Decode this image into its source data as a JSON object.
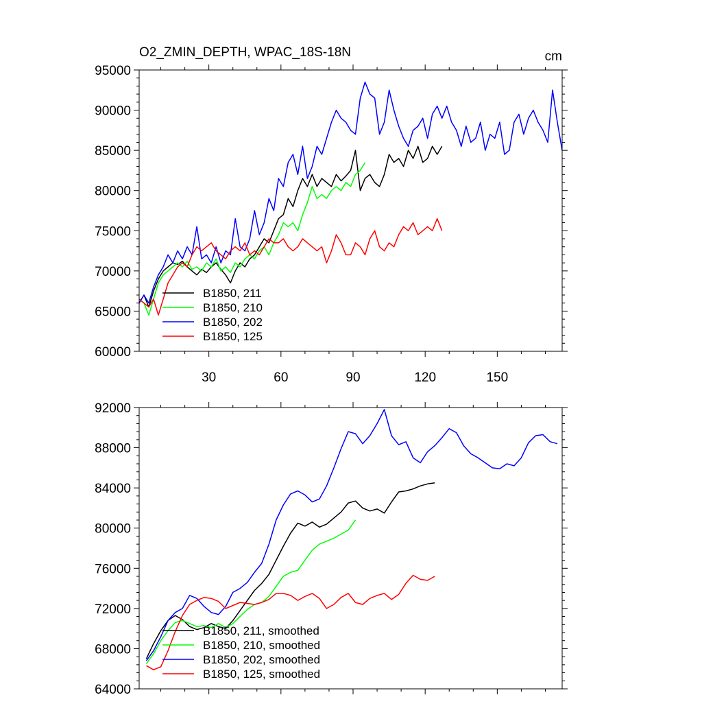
{
  "chart_data": [
    {
      "type": "line",
      "title": "O2_ZMIN_DEPTH, WPAC_18S-18N",
      "units": "cm",
      "xlabel": "",
      "ylabel": "",
      "xlim": [
        1,
        177
      ],
      "ylim": [
        60000,
        95000
      ],
      "xticks": [
        30,
        60,
        90,
        120,
        150
      ],
      "yticks": [
        60000,
        65000,
        70000,
        75000,
        80000,
        85000,
        90000,
        95000
      ],
      "ytick_labels": [
        "60000",
        "65000",
        "70000",
        "75000",
        "80000",
        "85000",
        "90000",
        "95000"
      ],
      "legend": "bottom-left",
      "grid": false,
      "series": [
        {
          "name": "B1850, 211",
          "color": "#000000",
          "x": [
            1,
            3,
            5,
            7,
            9,
            11,
            13,
            15,
            17,
            19,
            21,
            23,
            25,
            27,
            29,
            31,
            33,
            35,
            37,
            39,
            41,
            43,
            45,
            47,
            49,
            51,
            53,
            55,
            57,
            59,
            61,
            63,
            65,
            67,
            69,
            71,
            73,
            75,
            77,
            79,
            81,
            83,
            85,
            87,
            89,
            91,
            93,
            95,
            97,
            99,
            101,
            103,
            105,
            107,
            109,
            111,
            113,
            115,
            117,
            119,
            121,
            123,
            125,
            127
          ],
          "y": [
            66000,
            67000,
            65500,
            67500,
            69000,
            70000,
            70500,
            71000,
            70800,
            71200,
            70500,
            70000,
            69500,
            70200,
            69800,
            70500,
            71000,
            70200,
            69500,
            68500,
            70000,
            71000,
            70500,
            71500,
            72000,
            73000,
            74000,
            73500,
            75000,
            76500,
            77000,
            79000,
            78000,
            80000,
            81500,
            80500,
            82000,
            80500,
            81500,
            81000,
            80500,
            82000,
            81200,
            81800,
            82500,
            85000,
            80000,
            81500,
            82000,
            81000,
            80500,
            82000,
            84500,
            83500,
            84000,
            83000,
            85000,
            84000,
            85500,
            83500,
            84000,
            85500,
            84500,
            85500
          ]
        },
        {
          "name": "B1850, 210",
          "color": "#00ff00",
          "x": [
            1,
            3,
            5,
            7,
            9,
            11,
            13,
            15,
            17,
            19,
            21,
            23,
            25,
            27,
            29,
            31,
            33,
            35,
            37,
            39,
            41,
            43,
            45,
            47,
            49,
            51,
            53,
            55,
            57,
            59,
            61,
            63,
            65,
            67,
            69,
            71,
            73,
            75,
            77,
            79,
            81,
            83,
            85,
            87,
            89,
            91,
            93,
            95
          ],
          "y": [
            66500,
            66000,
            64500,
            66500,
            68500,
            69500,
            70000,
            70500,
            71000,
            70500,
            71200,
            70200,
            70500,
            70000,
            71000,
            70500,
            71500,
            70000,
            70500,
            69800,
            71000,
            70500,
            71500,
            72000,
            71500,
            72500,
            73000,
            72000,
            73500,
            74500,
            76000,
            75500,
            76000,
            75000,
            77000,
            78500,
            80500,
            79000,
            79500,
            79000,
            80000,
            80500,
            80000,
            81000,
            80500,
            82000,
            82500,
            83500
          ]
        },
        {
          "name": "B1850, 202",
          "color": "#0000ff",
          "x": [
            1,
            3,
            5,
            7,
            9,
            11,
            13,
            15,
            17,
            19,
            21,
            23,
            25,
            27,
            29,
            31,
            33,
            35,
            37,
            39,
            41,
            43,
            45,
            47,
            49,
            51,
            53,
            55,
            57,
            59,
            61,
            63,
            65,
            67,
            69,
            71,
            73,
            75,
            77,
            79,
            81,
            83,
            85,
            87,
            89,
            91,
            93,
            95,
            97,
            99,
            101,
            103,
            105,
            107,
            109,
            111,
            113,
            115,
            117,
            119,
            121,
            123,
            125,
            127,
            129,
            131,
            133,
            135,
            137,
            139,
            141,
            143,
            145,
            147,
            149,
            151,
            153,
            155,
            157,
            159,
            161,
            163,
            165,
            167,
            169,
            171,
            173,
            175,
            177
          ],
          "y": [
            66000,
            67000,
            66000,
            68000,
            69500,
            70500,
            72000,
            71000,
            72500,
            71500,
            73000,
            72000,
            75500,
            71500,
            72000,
            71000,
            73000,
            71000,
            72500,
            72000,
            76500,
            73000,
            72500,
            74000,
            77500,
            74500,
            76000,
            79000,
            77500,
            81500,
            80500,
            83500,
            84500,
            82000,
            85500,
            81500,
            83000,
            85500,
            84500,
            86500,
            88500,
            90000,
            89000,
            88500,
            87500,
            87000,
            91500,
            93500,
            92000,
            91500,
            87000,
            88500,
            92500,
            90000,
            88000,
            86500,
            85500,
            87500,
            88000,
            89000,
            86500,
            89500,
            90500,
            89000,
            90500,
            88500,
            87500,
            85500,
            88000,
            86000,
            86500,
            88500,
            85000,
            87000,
            86500,
            88500,
            84500,
            85000,
            88500,
            89500,
            87000,
            89000,
            90000,
            88500,
            87500,
            86000,
            92500,
            88500,
            85000
          ]
        },
        {
          "name": "B1850, 125",
          "color": "#ff0000",
          "x": [
            1,
            3,
            5,
            7,
            9,
            11,
            13,
            15,
            17,
            19,
            21,
            23,
            25,
            27,
            29,
            31,
            33,
            35,
            37,
            39,
            41,
            43,
            45,
            47,
            49,
            51,
            53,
            55,
            57,
            59,
            61,
            63,
            65,
            67,
            69,
            71,
            73,
            75,
            77,
            79,
            81,
            83,
            85,
            87,
            89,
            91,
            93,
            95,
            97,
            99,
            101,
            103,
            105,
            107,
            109,
            111,
            113,
            115,
            117,
            119,
            121,
            123,
            125,
            127
          ],
          "y": [
            66500,
            66000,
            65500,
            66500,
            64500,
            66500,
            68500,
            69500,
            70500,
            71000,
            70500,
            72000,
            73000,
            72500,
            73000,
            73500,
            72500,
            72000,
            71500,
            72500,
            73000,
            72500,
            73500,
            72000,
            72500,
            72000,
            73000,
            74000,
            73500,
            73500,
            74000,
            73000,
            72500,
            73000,
            74000,
            73500,
            73000,
            72500,
            73000,
            71000,
            72500,
            74500,
            73500,
            72000,
            72000,
            73500,
            73000,
            72000,
            74000,
            75000,
            73000,
            72500,
            73500,
            73000,
            74500,
            75500,
            75000,
            76000,
            74500,
            75000,
            75500,
            75000,
            76500,
            75000
          ]
        }
      ],
      "legend_labels": [
        "B1850, 211",
        "B1850, 210",
        "B1850, 202",
        "B1850, 125"
      ]
    },
    {
      "type": "line",
      "title": "",
      "xlabel": "",
      "ylabel": "",
      "xlim": [
        1,
        177
      ],
      "ylim": [
        64000,
        92000
      ],
      "xticks": [
        30,
        60,
        90,
        120,
        150
      ],
      "yticks": [
        64000,
        68000,
        72000,
        76000,
        80000,
        84000,
        88000,
        92000
      ],
      "ytick_labels": [
        "64000",
        "68000",
        "72000",
        "76000",
        "80000",
        "84000",
        "88000",
        "92000"
      ],
      "legend": "bottom-left",
      "grid": false,
      "series": [
        {
          "name": "B1850, 211, smoothed",
          "color": "#000000",
          "x": [
            4,
            7,
            10,
            13,
            16,
            19,
            22,
            25,
            28,
            31,
            34,
            37,
            40,
            43,
            46,
            49,
            52,
            55,
            58,
            61,
            64,
            67,
            70,
            73,
            76,
            79,
            82,
            85,
            88,
            91,
            94,
            97,
            100,
            103,
            106,
            109,
            112,
            115,
            118,
            121,
            124
          ],
          "y": [
            67000,
            68500,
            69800,
            70800,
            71300,
            70900,
            70200,
            69900,
            70100,
            70500,
            70200,
            70000,
            70800,
            71800,
            72800,
            73800,
            74500,
            75400,
            76800,
            78200,
            79500,
            80500,
            80200,
            80600,
            80100,
            80400,
            81000,
            81600,
            82500,
            82700,
            82000,
            81700,
            81900,
            81500,
            82600,
            83600,
            83700,
            83900,
            84200,
            84400,
            84500
          ]
        },
        {
          "name": "B1850, 210, smoothed",
          "color": "#00ff00",
          "x": [
            4,
            7,
            10,
            13,
            16,
            19,
            22,
            25,
            28,
            31,
            34,
            37,
            40,
            43,
            46,
            49,
            52,
            55,
            58,
            61,
            64,
            67,
            70,
            73,
            76,
            79,
            82,
            85,
            88,
            91
          ],
          "y": [
            66500,
            67500,
            68800,
            69800,
            70600,
            70800,
            70500,
            70200,
            70300,
            70100,
            70500,
            70100,
            70500,
            71200,
            71900,
            72400,
            72600,
            73200,
            74200,
            75200,
            75600,
            75800,
            76800,
            77800,
            78400,
            78700,
            79000,
            79400,
            79800,
            80800
          ]
        },
        {
          "name": "B1850, 202, smoothed",
          "color": "#0000ff",
          "x": [
            4,
            7,
            10,
            13,
            16,
            19,
            22,
            25,
            28,
            31,
            34,
            37,
            40,
            43,
            46,
            49,
            52,
            55,
            58,
            61,
            64,
            67,
            70,
            73,
            76,
            79,
            82,
            85,
            88,
            91,
            94,
            97,
            100,
            103,
            106,
            109,
            112,
            115,
            118,
            121,
            124,
            127,
            130,
            133,
            136,
            139,
            142,
            145,
            148,
            151,
            154,
            157,
            160,
            163,
            166,
            169,
            172,
            175
          ],
          "y": [
            66800,
            67800,
            69200,
            70800,
            71600,
            72000,
            73300,
            73000,
            72200,
            71600,
            71400,
            72200,
            73600,
            74000,
            74600,
            75600,
            76500,
            78400,
            80800,
            82300,
            83400,
            83700,
            83300,
            82600,
            82900,
            84200,
            86000,
            87900,
            89600,
            89400,
            88400,
            89200,
            90400,
            91800,
            89200,
            88300,
            88600,
            87000,
            86500,
            87600,
            88200,
            89000,
            89900,
            89500,
            88200,
            87400,
            87000,
            86500,
            86000,
            85900,
            86400,
            86200,
            87000,
            88500,
            89200,
            89300,
            88600,
            88400
          ]
        },
        {
          "name": "B1850, 125, smoothed",
          "color": "#ff0000",
          "x": [
            4,
            7,
            10,
            13,
            16,
            19,
            22,
            25,
            28,
            31,
            34,
            37,
            40,
            43,
            46,
            49,
            52,
            55,
            58,
            61,
            64,
            67,
            70,
            73,
            76,
            79,
            82,
            85,
            88,
            91,
            94,
            97,
            100,
            103,
            106,
            109,
            112,
            115,
            118,
            121,
            124
          ],
          "y": [
            66300,
            65900,
            66200,
            67800,
            69700,
            71300,
            72400,
            72800,
            73100,
            73000,
            72700,
            72000,
            72300,
            72600,
            72500,
            72400,
            72600,
            72900,
            73500,
            73500,
            73300,
            72800,
            73200,
            73500,
            73000,
            72000,
            72400,
            73100,
            73500,
            72600,
            72400,
            73000,
            73300,
            73500,
            72900,
            73400,
            74500,
            75300,
            74900,
            74800,
            75200
          ]
        }
      ],
      "legend_labels": [
        "B1850, 211, smoothed",
        "B1850, 210, smoothed",
        "B1850, 202, smoothed",
        "B1850, 125, smoothed"
      ]
    }
  ]
}
